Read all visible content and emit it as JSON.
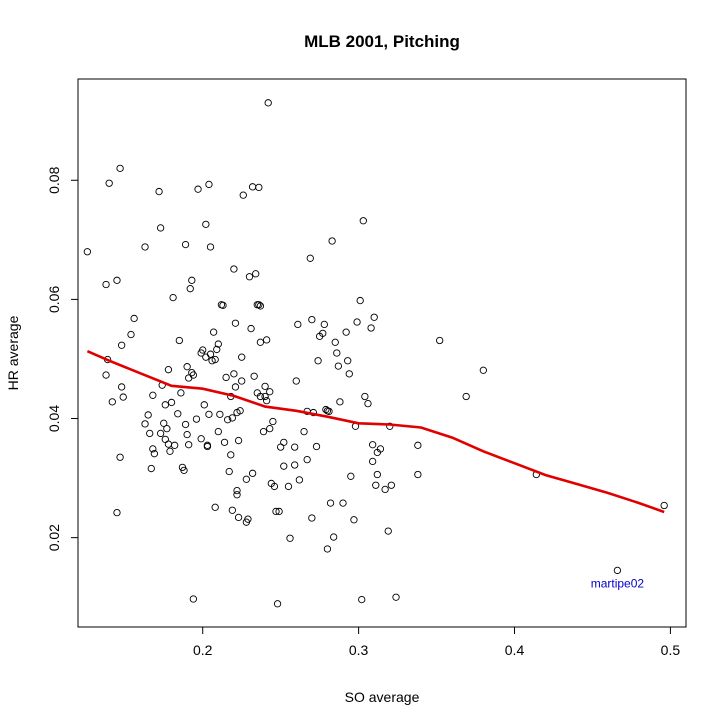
{
  "chart_data": {
    "type": "scatter",
    "title": "MLB 2001, Pitching",
    "xlabel": "SO average",
    "ylabel": "HR average",
    "xlim": [
      0.12,
      0.51
    ],
    "ylim": [
      0.005,
      0.097
    ],
    "xticks": [
      0.2,
      0.3,
      0.4,
      0.5
    ],
    "xtick_labels": [
      "0.2",
      "0.3",
      "0.4",
      "0.5"
    ],
    "yticks": [
      0.02,
      0.04,
      0.06,
      0.08
    ],
    "ytick_labels": [
      "0.02",
      "0.04",
      "0.06",
      "0.08"
    ],
    "grid": false,
    "point_color": "#000000",
    "smoother_color": "#e00000",
    "annotation_color": "#0000cc",
    "annotations": [
      {
        "label": "martipe02",
        "x": 0.466,
        "y": 0.0145
      }
    ],
    "smoother": {
      "x": [
        0.126,
        0.14,
        0.16,
        0.18,
        0.2,
        0.22,
        0.24,
        0.26,
        0.28,
        0.3,
        0.32,
        0.34,
        0.36,
        0.38,
        0.4,
        0.42,
        0.44,
        0.46,
        0.48,
        0.496
      ],
      "y": [
        0.0513,
        0.0497,
        0.0476,
        0.0455,
        0.045,
        0.0438,
        0.042,
        0.0413,
        0.0403,
        0.0392,
        0.039,
        0.0385,
        0.0368,
        0.0345,
        0.0325,
        0.0305,
        0.029,
        0.0275,
        0.0258,
        0.0243
      ]
    },
    "points": [
      [
        0.126,
        0.068
      ],
      [
        0.138,
        0.0625
      ],
      [
        0.14,
        0.0795
      ],
      [
        0.145,
        0.0632
      ],
      [
        0.147,
        0.082
      ],
      [
        0.138,
        0.0473
      ],
      [
        0.139,
        0.0499
      ],
      [
        0.142,
        0.0428
      ],
      [
        0.145,
        0.0242
      ],
      [
        0.147,
        0.0335
      ],
      [
        0.148,
        0.0523
      ],
      [
        0.148,
        0.0453
      ],
      [
        0.149,
        0.0436
      ],
      [
        0.154,
        0.0541
      ],
      [
        0.156,
        0.0568
      ],
      [
        0.163,
        0.0688
      ],
      [
        0.163,
        0.0391
      ],
      [
        0.165,
        0.0406
      ],
      [
        0.166,
        0.0375
      ],
      [
        0.167,
        0.0316
      ],
      [
        0.168,
        0.0349
      ],
      [
        0.168,
        0.0439
      ],
      [
        0.169,
        0.0341
      ],
      [
        0.172,
        0.0781
      ],
      [
        0.173,
        0.072
      ],
      [
        0.173,
        0.0375
      ],
      [
        0.174,
        0.0456
      ],
      [
        0.175,
        0.0392
      ],
      [
        0.176,
        0.0423
      ],
      [
        0.176,
        0.0365
      ],
      [
        0.177,
        0.0383
      ],
      [
        0.178,
        0.0357
      ],
      [
        0.178,
        0.0482
      ],
      [
        0.179,
        0.0345
      ],
      [
        0.18,
        0.0427
      ],
      [
        0.181,
        0.0603
      ],
      [
        0.182,
        0.0355
      ],
      [
        0.184,
        0.0408
      ],
      [
        0.185,
        0.0531
      ],
      [
        0.186,
        0.0443
      ],
      [
        0.187,
        0.0318
      ],
      [
        0.188,
        0.0313
      ],
      [
        0.189,
        0.039
      ],
      [
        0.189,
        0.0692
      ],
      [
        0.19,
        0.0373
      ],
      [
        0.19,
        0.0487
      ],
      [
        0.191,
        0.0356
      ],
      [
        0.191,
        0.0468
      ],
      [
        0.192,
        0.0618
      ],
      [
        0.193,
        0.0632
      ],
      [
        0.193,
        0.0477
      ],
      [
        0.194,
        0.0473
      ],
      [
        0.194,
        0.0097
      ],
      [
        0.196,
        0.0399
      ],
      [
        0.197,
        0.0785
      ],
      [
        0.199,
        0.051
      ],
      [
        0.199,
        0.0366
      ],
      [
        0.2,
        0.0515
      ],
      [
        0.201,
        0.0423
      ],
      [
        0.202,
        0.0726
      ],
      [
        0.202,
        0.0503
      ],
      [
        0.203,
        0.0353
      ],
      [
        0.203,
        0.0355
      ],
      [
        0.204,
        0.0407
      ],
      [
        0.204,
        0.0793
      ],
      [
        0.205,
        0.0688
      ],
      [
        0.205,
        0.0508
      ],
      [
        0.206,
        0.0497
      ],
      [
        0.207,
        0.0545
      ],
      [
        0.208,
        0.0251
      ],
      [
        0.208,
        0.0499
      ],
      [
        0.209,
        0.0516
      ],
      [
        0.21,
        0.0525
      ],
      [
        0.21,
        0.0378
      ],
      [
        0.211,
        0.0407
      ],
      [
        0.212,
        0.0591
      ],
      [
        0.213,
        0.059
      ],
      [
        0.214,
        0.036
      ],
      [
        0.215,
        0.0469
      ],
      [
        0.216,
        0.0398
      ],
      [
        0.217,
        0.0311
      ],
      [
        0.218,
        0.0339
      ],
      [
        0.218,
        0.0437
      ],
      [
        0.219,
        0.0246
      ],
      [
        0.219,
        0.0401
      ],
      [
        0.22,
        0.0651
      ],
      [
        0.22,
        0.0475
      ],
      [
        0.221,
        0.056
      ],
      [
        0.221,
        0.0453
      ],
      [
        0.222,
        0.041
      ],
      [
        0.222,
        0.0279
      ],
      [
        0.222,
        0.0272
      ],
      [
        0.223,
        0.0234
      ],
      [
        0.223,
        0.0363
      ],
      [
        0.224,
        0.0413
      ],
      [
        0.225,
        0.0463
      ],
      [
        0.225,
        0.0503
      ],
      [
        0.226,
        0.0775
      ],
      [
        0.228,
        0.0226
      ],
      [
        0.228,
        0.0298
      ],
      [
        0.229,
        0.0231
      ],
      [
        0.23,
        0.0638
      ],
      [
        0.231,
        0.0551
      ],
      [
        0.232,
        0.0789
      ],
      [
        0.232,
        0.0308
      ],
      [
        0.233,
        0.0471
      ],
      [
        0.234,
        0.0643
      ],
      [
        0.235,
        0.0591
      ],
      [
        0.235,
        0.0443
      ],
      [
        0.236,
        0.0591
      ],
      [
        0.236,
        0.0788
      ],
      [
        0.237,
        0.0589
      ],
      [
        0.237,
        0.0528
      ],
      [
        0.237,
        0.0437
      ],
      [
        0.239,
        0.0378
      ],
      [
        0.24,
        0.0454
      ],
      [
        0.24,
        0.0437
      ],
      [
        0.241,
        0.0532
      ],
      [
        0.241,
        0.043
      ],
      [
        0.242,
        0.093
      ],
      [
        0.243,
        0.0445
      ],
      [
        0.243,
        0.0383
      ],
      [
        0.244,
        0.0291
      ],
      [
        0.245,
        0.0395
      ],
      [
        0.246,
        0.0286
      ],
      [
        0.247,
        0.0244
      ],
      [
        0.248,
        0.0089
      ],
      [
        0.249,
        0.0244
      ],
      [
        0.25,
        0.0352
      ],
      [
        0.252,
        0.036
      ],
      [
        0.252,
        0.032
      ],
      [
        0.255,
        0.0286
      ],
      [
        0.256,
        0.0199
      ],
      [
        0.259,
        0.0352
      ],
      [
        0.259,
        0.0322
      ],
      [
        0.26,
        0.0463
      ],
      [
        0.261,
        0.0558
      ],
      [
        0.262,
        0.0297
      ],
      [
        0.265,
        0.0378
      ],
      [
        0.267,
        0.0331
      ],
      [
        0.267,
        0.0412
      ],
      [
        0.269,
        0.0669
      ],
      [
        0.27,
        0.0566
      ],
      [
        0.27,
        0.0233
      ],
      [
        0.271,
        0.041
      ],
      [
        0.273,
        0.0353
      ],
      [
        0.274,
        0.0497
      ],
      [
        0.275,
        0.0538
      ],
      [
        0.277,
        0.0543
      ],
      [
        0.278,
        0.0558
      ],
      [
        0.279,
        0.0415
      ],
      [
        0.28,
        0.0413
      ],
      [
        0.28,
        0.0181
      ],
      [
        0.281,
        0.0412
      ],
      [
        0.282,
        0.0258
      ],
      [
        0.283,
        0.0698
      ],
      [
        0.284,
        0.0201
      ],
      [
        0.285,
        0.0528
      ],
      [
        0.286,
        0.051
      ],
      [
        0.287,
        0.0488
      ],
      [
        0.288,
        0.0428
      ],
      [
        0.29,
        0.0258
      ],
      [
        0.292,
        0.0545
      ],
      [
        0.293,
        0.0497
      ],
      [
        0.294,
        0.0475
      ],
      [
        0.295,
        0.0303
      ],
      [
        0.297,
        0.023
      ],
      [
        0.298,
        0.0387
      ],
      [
        0.299,
        0.0562
      ],
      [
        0.301,
        0.0598
      ],
      [
        0.302,
        0.0096
      ],
      [
        0.303,
        0.0732
      ],
      [
        0.304,
        0.0437
      ],
      [
        0.306,
        0.0425
      ],
      [
        0.308,
        0.0552
      ],
      [
        0.309,
        0.0356
      ],
      [
        0.309,
        0.0328
      ],
      [
        0.31,
        0.057
      ],
      [
        0.311,
        0.0288
      ],
      [
        0.312,
        0.0343
      ],
      [
        0.312,
        0.0306
      ],
      [
        0.314,
        0.0349
      ],
      [
        0.317,
        0.0281
      ],
      [
        0.319,
        0.0211
      ],
      [
        0.32,
        0.0387
      ],
      [
        0.321,
        0.0288
      ],
      [
        0.324,
        0.01
      ],
      [
        0.338,
        0.0306
      ],
      [
        0.338,
        0.0355
      ],
      [
        0.352,
        0.0531
      ],
      [
        0.369,
        0.0437
      ],
      [
        0.38,
        0.0481
      ],
      [
        0.414,
        0.0306
      ],
      [
        0.466,
        0.0145
      ],
      [
        0.496,
        0.0254
      ]
    ]
  }
}
